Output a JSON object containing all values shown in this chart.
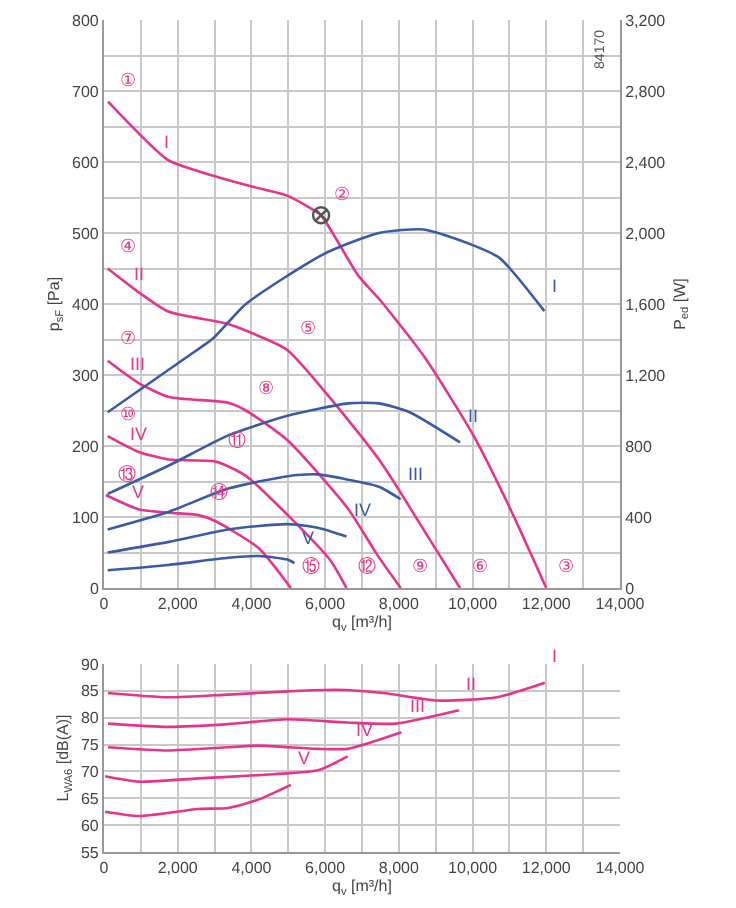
{
  "chart_data": [
    {
      "type": "line",
      "xlabel": "q$_{v}$ [m³/h]",
      "ylabel": "p$_{sF}$ [Pa]",
      "y2label": "P$_{ed}$ [W]",
      "xlim": [
        0,
        14000
      ],
      "ylim": [
        0,
        800
      ],
      "y2lim": [
        0,
        3200
      ],
      "xticks": [
        0,
        {
          "value": 1000,
          "label": null
        },
        {
          "value": 2000,
          "label": "2,000"
        },
        {
          "value": 3000,
          "label": null
        },
        {
          "value": 4000,
          "label": "4,000"
        },
        {
          "value": 5000,
          "label": null
        },
        {
          "value": 6000,
          "label": "6,000"
        },
        {
          "value": 7000,
          "label": null
        },
        {
          "value": 8000,
          "label": "8,000"
        },
        {
          "value": 9000,
          "label": null
        },
        {
          "value": 10000,
          "label": "10,000"
        },
        {
          "value": 11000,
          "label": null
        },
        {
          "value": 12000,
          "label": "12,000"
        },
        {
          "value": 13000,
          "label": null
        },
        {
          "value": 14000,
          "label": "14,000"
        }
      ],
      "yticks": [
        0,
        {
          "value": 50,
          "label": null
        },
        100,
        {
          "value": 150,
          "label": null
        },
        200,
        {
          "value": 250,
          "label": null
        },
        300,
        {
          "value": 350,
          "label": null
        },
        400,
        {
          "value": 450,
          "label": null
        },
        500,
        {
          "value": 550,
          "label": null
        },
        600,
        {
          "value": 650,
          "label": null
        },
        700,
        {
          "value": 750,
          "label": null
        },
        800
      ],
      "y2ticks": [
        0,
        400,
        800,
        {
          "value": 1200,
          "label": "1,200"
        },
        {
          "value": 1600,
          "label": "1,600"
        },
        {
          "value": 2000,
          "label": "2,000"
        },
        {
          "value": 2400,
          "label": "2,400"
        },
        {
          "value": 2800,
          "label": "2,800"
        },
        {
          "value": 3200,
          "label": "3,200"
        }
      ],
      "grid": true,
      "legend": false,
      "marker": "none",
      "line_style": "solid",
      "series": [
        {
          "name": "I",
          "color": "#e6348c",
          "x": [
            110,
            1730,
            2690,
            3980,
            4950,
            5600,
            5890,
            6900,
            7500,
            8700,
            10000,
            11000,
            12000
          ],
          "values": [
            685,
            603,
            585,
            566,
            553,
            535,
            525,
            440,
            405,
            325,
            217,
            114,
            0
          ]
        },
        {
          "name": "II",
          "color": "#e6348c",
          "x": [
            100,
            930,
            1760,
            3370,
            4200,
            4980,
            7460,
            8590,
            9660
          ],
          "values": [
            450,
            417,
            389,
            372,
            355,
            335,
            181,
            89,
            0
          ]
        },
        {
          "name": "III",
          "color": "#e6348c",
          "x": [
            100,
            930,
            1760,
            3370,
            3850,
            4980,
            6630,
            7410,
            8050
          ],
          "values": [
            320,
            289,
            269,
            261,
            250,
            208,
            111,
            47,
            0
          ]
        },
        {
          "name": "IV",
          "color": "#e6348c",
          "x": [
            100,
            930,
            1760,
            3030,
            3850,
            4980,
            6140,
            6580
          ],
          "values": [
            214,
            192,
            181,
            178,
            158,
            103,
            39,
            0
          ]
        },
        {
          "name": "V",
          "color": "#e6348c",
          "x": [
            50,
            930,
            1760,
            2540,
            3030,
            4200,
            5070
          ],
          "values": [
            131,
            111,
            106,
            103,
            94,
            56,
            0
          ]
        },
        {
          "name": "I",
          "color": "#3a5aa8",
          "axis": "y2",
          "x": [
            100,
            2240,
            2980,
            3850,
            5950,
            7460,
            8680,
            9900,
            10730,
            11950
          ],
          "values": [
            990,
            1300,
            1410,
            1600,
            1880,
            2000,
            2020,
            1940,
            1860,
            1560
          ]
        },
        {
          "name": "II",
          "color": "#3a5aa8",
          "axis": "y2",
          "x": [
            100,
            1760,
            3370,
            4980,
            6630,
            7460,
            8290,
            9660
          ],
          "values": [
            530,
            690,
            860,
            970,
            1040,
            1040,
            990,
            820
          ]
        },
        {
          "name": "III",
          "color": "#3a5aa8",
          "axis": "y2",
          "x": [
            100,
            1760,
            3370,
            4980,
            5800,
            6630,
            7460,
            8050
          ],
          "values": [
            330,
            430,
            560,
            630,
            640,
            610,
            570,
            500
          ]
        },
        {
          "name": "IV",
          "color": "#3a5aa8",
          "axis": "y2",
          "x": [
            100,
            1760,
            3370,
            4980,
            5800,
            6580
          ],
          "values": [
            200,
            260,
            330,
            360,
            340,
            290
          ]
        },
        {
          "name": "V",
          "color": "#3a5aa8",
          "axis": "y2",
          "x": [
            100,
            1760,
            3370,
            4200,
            4980,
            5170
          ],
          "values": [
            100,
            130,
            170,
            180,
            160,
            140
          ]
        },
        {
          "type": "scatter",
          "marker": "cross",
          "color": "#555555",
          "x": [
            5890
          ],
          "values": [
            525
          ]
        }
      ],
      "annotations": [
        "84170",
        {
          "text": "①",
          "x": 110,
          "y": 685
        },
        {
          "text": "②",
          "x": 5890,
          "y": 525
        },
        {
          "text": "③",
          "x": 12000,
          "y": 0
        },
        {
          "text": "④",
          "x": 100,
          "y": 450
        },
        {
          "text": "⑤",
          "x": 4980,
          "y": 335
        },
        {
          "text": "⑥",
          "x": 9660,
          "y": 0
        },
        {
          "text": "⑦",
          "x": 100,
          "y": 320
        },
        {
          "text": "⑧",
          "x": 3850,
          "y": 250
        },
        {
          "text": "⑨",
          "x": 8050,
          "y": 0
        },
        {
          "text": "⑩",
          "x": 100,
          "y": 214
        },
        {
          "text": "⑪",
          "x": 3030,
          "y": 178
        },
        {
          "text": "⑫",
          "x": 6580,
          "y": 0
        },
        {
          "text": "⑬",
          "x": 50,
          "y": 131
        },
        {
          "text": "⑭",
          "x": 2540,
          "y": 103
        },
        {
          "text": "⑮",
          "x": 5070,
          "y": 0
        }
      ]
    },
    {
      "type": "line",
      "xlabel": "q$_{v}$ [m³/h]",
      "ylabel": "L$_{WA6}$ [dB(A)]",
      "xlim": [
        0,
        14000
      ],
      "ylim": [
        55,
        90
      ],
      "xticks": [
        0,
        {
          "value": 1000,
          "label": null
        },
        {
          "value": 2000,
          "label": "2,000"
        },
        {
          "value": 3000,
          "label": null
        },
        {
          "value": 4000,
          "label": "4,000"
        },
        {
          "value": 5000,
          "label": null
        },
        {
          "value": 6000,
          "label": "6,000"
        },
        {
          "value": 7000,
          "label": null
        },
        {
          "value": 8000,
          "label": "8,000"
        },
        {
          "value": 9000,
          "label": null
        },
        {
          "value": 10000,
          "label": "10,000"
        },
        {
          "value": 11000,
          "label": null
        },
        {
          "value": 12000,
          "label": "12,000"
        },
        {
          "value": 13000,
          "label": null
        },
        {
          "value": 14000,
          "label": "14,000"
        }
      ],
      "yticks": [
        55,
        60,
        65,
        70,
        75,
        80,
        85,
        90
      ],
      "grid": true,
      "legend": false,
      "marker": "none",
      "line_style": "solid",
      "series": [
        {
          "name": "I",
          "color": "#e6348c",
          "x": [
            110,
            1740,
            3360,
            4980,
            6280,
            7580,
            9040,
            10660,
            11960
          ],
          "values": [
            84.6,
            83.8,
            84.3,
            84.9,
            85.2,
            84.6,
            83.2,
            83.8,
            86.5
          ]
        },
        {
          "name": "II",
          "color": "#e6348c",
          "x": [
            110,
            1740,
            3360,
            4980,
            6610,
            7900,
            9630
          ],
          "values": [
            78.9,
            78.3,
            78.8,
            79.7,
            79.1,
            78.9,
            81.4
          ]
        },
        {
          "name": "III",
          "color": "#e6348c",
          "x": [
            110,
            1740,
            3360,
            4170,
            5800,
            6610,
            8070
          ],
          "values": [
            74.5,
            73.9,
            74.5,
            74.8,
            74.2,
            74.2,
            77.3
          ]
        },
        {
          "name": "IV",
          "color": "#e6348c",
          "x": [
            30,
            940,
            2550,
            4170,
            5800,
            6610
          ],
          "values": [
            69.1,
            68.1,
            68.7,
            69.3,
            70.2,
            72.8
          ]
        },
        {
          "name": "V",
          "color": "#e6348c",
          "x": [
            30,
            940,
            2550,
            3360,
            4170,
            5070
          ],
          "values": [
            62.5,
            61.7,
            63.0,
            63.2,
            64.7,
            67.5
          ]
        }
      ]
    }
  ]
}
